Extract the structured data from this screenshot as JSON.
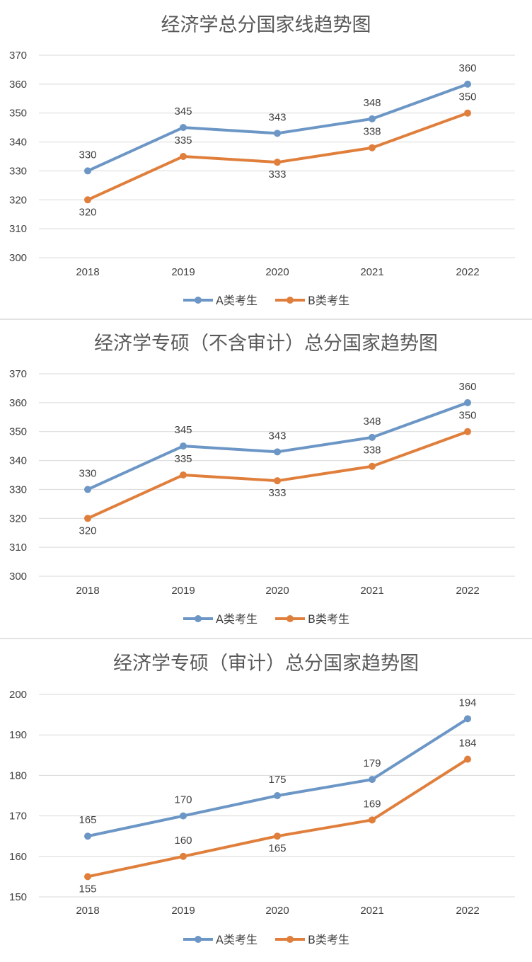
{
  "chart_data": [
    {
      "type": "line",
      "title": "经济学总分国家线趋势图",
      "categories": [
        "2018",
        "2019",
        "2020",
        "2021",
        "2022"
      ],
      "ylim": [
        300,
        370
      ],
      "yticks": [
        "300",
        "310",
        "320",
        "330",
        "340",
        "350",
        "360",
        "370"
      ],
      "grid": true,
      "legend_position": "bottom",
      "series": [
        {
          "name": "A类考生",
          "color": "#6b96c5",
          "values": [
            330,
            345,
            343,
            348,
            360
          ]
        },
        {
          "name": "B类考生",
          "color": "#e07f3c",
          "values": [
            320,
            335,
            333,
            338,
            350
          ]
        }
      ]
    },
    {
      "type": "line",
      "title": "经济学专硕（不含审计）总分国家趋势图",
      "categories": [
        "2018",
        "2019",
        "2020",
        "2021",
        "2022"
      ],
      "ylim": [
        300,
        370
      ],
      "yticks": [
        "300",
        "310",
        "320",
        "330",
        "340",
        "350",
        "360",
        "370"
      ],
      "grid": true,
      "legend_position": "bottom",
      "series": [
        {
          "name": "A类考生",
          "color": "#6b96c5",
          "values": [
            330,
            345,
            343,
            348,
            360
          ]
        },
        {
          "name": "B类考生",
          "color": "#e07f3c",
          "values": [
            320,
            335,
            333,
            338,
            350
          ]
        }
      ]
    },
    {
      "type": "line",
      "title": "经济学专硕（审计）总分国家趋势图",
      "categories": [
        "2018",
        "2019",
        "2020",
        "2021",
        "2022"
      ],
      "ylim": [
        150,
        200
      ],
      "yticks": [
        "150",
        "160",
        "170",
        "180",
        "190",
        "200"
      ],
      "grid": true,
      "legend_position": "bottom",
      "series": [
        {
          "name": "A类考生",
          "color": "#6b96c5",
          "values": [
            165,
            170,
            175,
            179,
            194
          ]
        },
        {
          "name": "B类考生",
          "color": "#e07f3c",
          "values": [
            155,
            160,
            165,
            169,
            184
          ]
        }
      ]
    }
  ]
}
